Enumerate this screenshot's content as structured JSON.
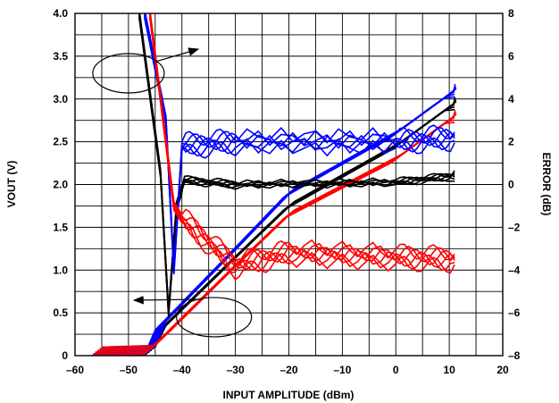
{
  "chart_data": {
    "type": "line",
    "title": "",
    "xlabel": "INPUT AMPLITUDE (dBm)",
    "ylabel_left": "VOUT (V)",
    "ylabel_right": "ERROR (dB)",
    "xlim": [
      -60,
      20
    ],
    "ylim_left": [
      0,
      4.0
    ],
    "ylim_right": [
      -8,
      8
    ],
    "x_ticks": [
      "–60",
      "–50",
      "–40",
      "–30",
      "–20",
      "–10",
      "0",
      "10",
      "20"
    ],
    "y_left_ticks": [
      "0",
      "0.5",
      "1.0",
      "1.5",
      "2.0",
      "2.5",
      "3.0",
      "3.5",
      "4.0"
    ],
    "y_right_ticks": [
      "–8",
      "–6",
      "–4",
      "–2",
      "0",
      "2",
      "4",
      "6",
      "8"
    ],
    "grid": true,
    "legend": "none",
    "annotations": [
      {
        "type": "ellipse-arrow",
        "points_to": "right-axis",
        "around": [
          -50,
          3.3
        ]
      },
      {
        "type": "ellipse-arrow",
        "points_to": "left-axis",
        "around": [
          -34,
          0.45
        ]
      }
    ],
    "series": [
      {
        "color": "#000000",
        "axis": "left",
        "points": [
          [
            -56,
            0.05
          ],
          [
            -46,
            0.05
          ],
          [
            -44,
            0.3
          ],
          [
            -30,
            1.15
          ],
          [
            -20,
            1.75
          ],
          [
            0,
            2.45
          ],
          [
            11,
            2.95
          ]
        ]
      },
      {
        "color": "#0000ff",
        "axis": "left",
        "points": [
          [
            -56,
            0.05
          ],
          [
            -46,
            0.06
          ],
          [
            -44,
            0.35
          ],
          [
            -30,
            1.25
          ],
          [
            -20,
            1.9
          ],
          [
            0,
            2.6
          ],
          [
            11,
            3.1
          ]
        ]
      },
      {
        "color": "#ff0000",
        "axis": "left",
        "points": [
          [
            -56,
            0.05
          ],
          [
            -46,
            0.07
          ],
          [
            -43,
            0.25
          ],
          [
            -30,
            1.05
          ],
          [
            -20,
            1.65
          ],
          [
            0,
            2.3
          ],
          [
            11,
            2.8
          ]
        ]
      },
      {
        "color": "#000000",
        "axis": "right",
        "points": [
          [
            -48,
            8
          ],
          [
            -44,
            0.5
          ],
          [
            -42.5,
            -6.0
          ],
          [
            -41,
            -1.0
          ],
          [
            -39.5,
            0.2
          ],
          [
            -30,
            0.0
          ],
          [
            0,
            0.1
          ],
          [
            11,
            0.4
          ]
        ]
      },
      {
        "color": "#0000ff",
        "axis": "right",
        "points": [
          [
            -47,
            8
          ],
          [
            -43,
            3.0
          ],
          [
            -41.5,
            -4.0
          ],
          [
            -40,
            1.8
          ],
          [
            -30,
            2.0
          ],
          [
            0,
            2.0
          ],
          [
            11,
            2.2
          ]
        ]
      },
      {
        "color": "#ff0000",
        "axis": "right",
        "points": [
          [
            -46,
            8
          ],
          [
            -41.5,
            -1.0
          ],
          [
            -40,
            -1.6
          ],
          [
            -30,
            -3.8
          ],
          [
            -20,
            -3.2
          ],
          [
            0,
            -3.4
          ],
          [
            11,
            -3.5
          ]
        ]
      }
    ]
  }
}
